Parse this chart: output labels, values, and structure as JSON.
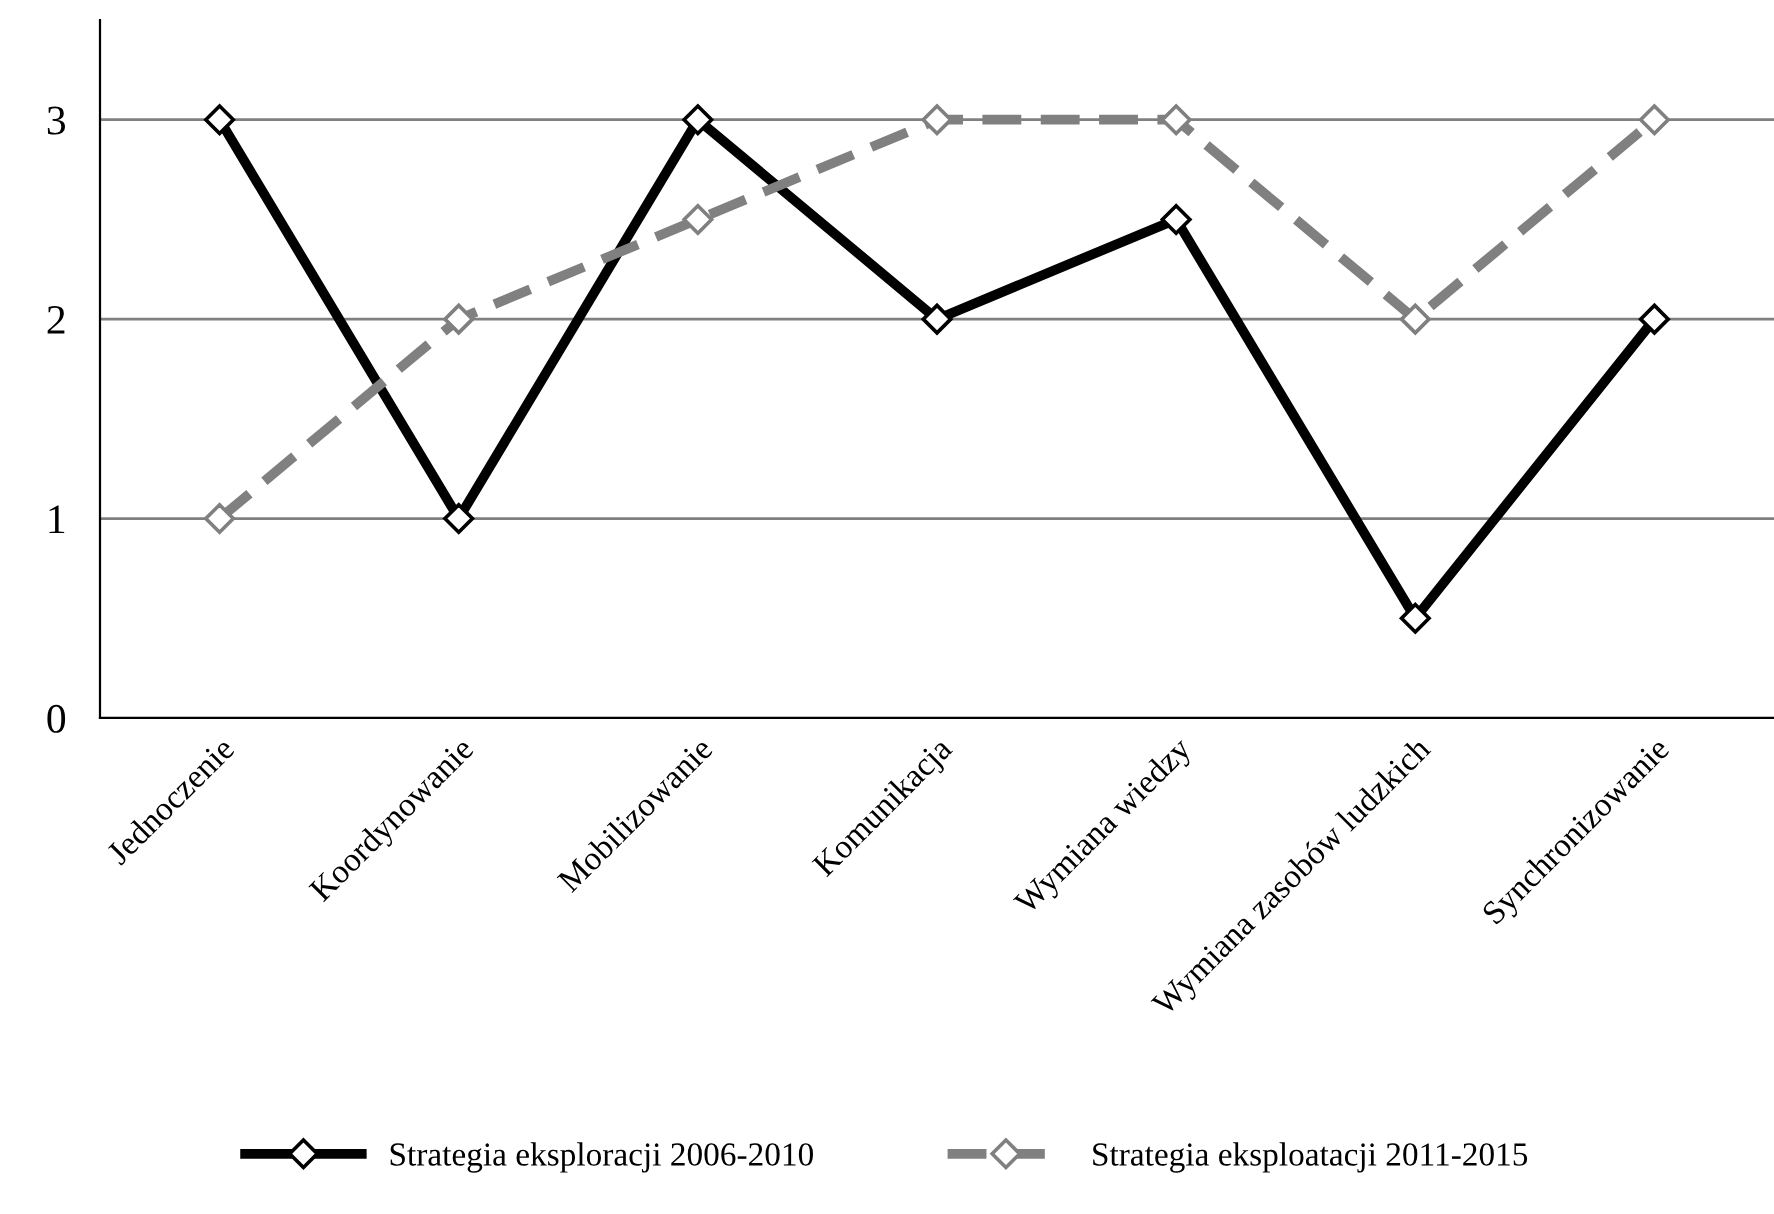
{
  "chart_data": {
    "type": "line",
    "categories": [
      "Jednoczenie",
      "Koordynowanie",
      "Mobilizowanie",
      "Komunikacja",
      "Wymiana wiedzy",
      "Wymiana zasobów ludzkich",
      "Synchronizowanie"
    ],
    "series": [
      {
        "name": "Strategia eksploracji 2006-2010",
        "color": "#000000",
        "line_style": "solid",
        "values": [
          3,
          1,
          3,
          2,
          2.5,
          0.5,
          2
        ]
      },
      {
        "name": "Strategia eksploatacji 2011-2015",
        "color": "#808080",
        "line_style": "dashed",
        "values": [
          1,
          2,
          2.5,
          3,
          3,
          2,
          3
        ]
      }
    ],
    "ylim": [
      0,
      3.5
    ],
    "yticks": [
      0,
      1,
      2,
      3
    ],
    "grid": "y",
    "legend": "bottom",
    "marker": "diamond"
  }
}
